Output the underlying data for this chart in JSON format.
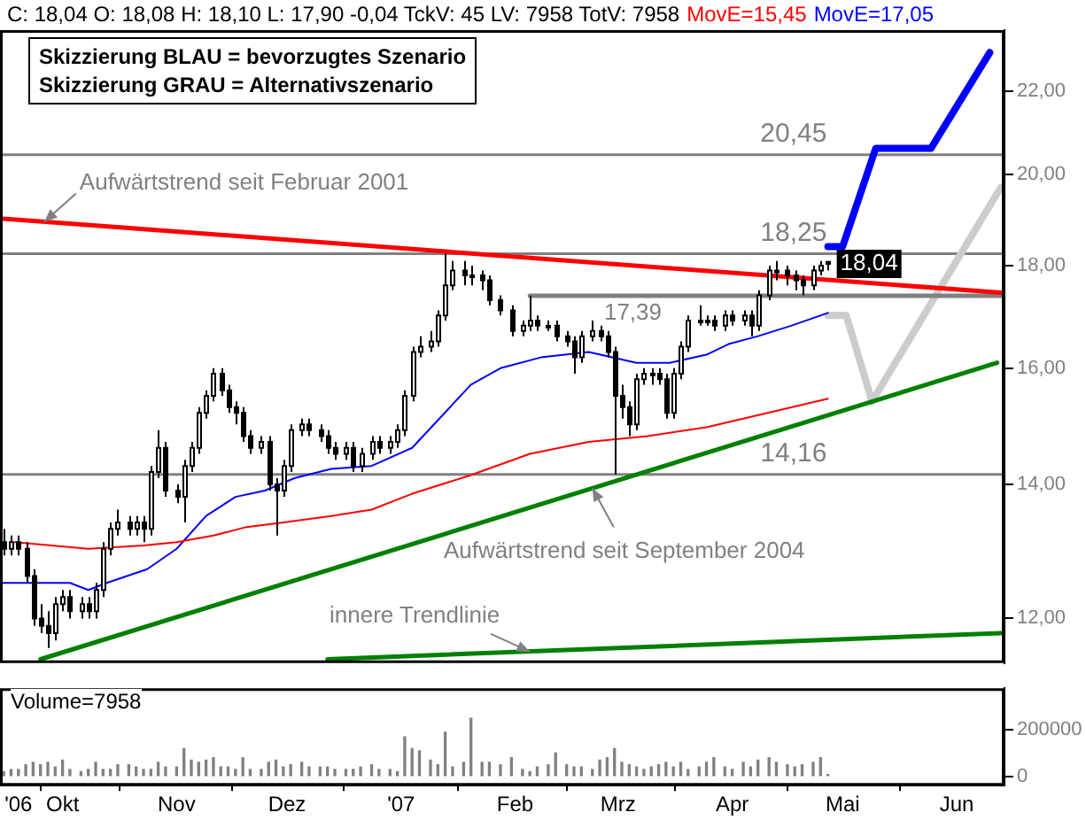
{
  "chart_data": [
    {
      "type": "candlestick",
      "title": "C: 18,04 O: 18,08 H: 18,10 L: 17,90 -0,04 TckV: 45 LV: 7958 TotV: 7958",
      "legend": "top",
      "log": true,
      "tick_labels": "y",
      "xlim": [
        "2006-09-14",
        "2007-06-14"
      ],
      "ylim": [
        11.4,
        23.6
      ],
      "yticks": [
        {
          "value": 12,
          "label": "12,00"
        },
        {
          "value": 14,
          "label": "14,00"
        },
        {
          "value": 16,
          "label": "16,00"
        },
        {
          "value": 18,
          "label": "18,00"
        },
        {
          "value": 20,
          "label": "20,00"
        },
        {
          "value": 22,
          "label": "22,00"
        }
      ],
      "x": [
        "2006-09-15",
        "2006-09-17",
        "2006-09-19",
        "2006-09-21",
        "2006-09-23",
        "2006-09-25",
        "2006-09-27",
        "2006-09-29",
        "2006-10-01",
        "2006-10-03",
        "2006-10-06",
        "2006-10-08",
        "2006-10-10",
        "2006-10-12",
        "2006-10-14",
        "2006-10-16",
        "2006-10-19",
        "2006-10-21",
        "2006-10-23",
        "2006-10-25",
        "2006-10-27",
        "2006-10-29",
        "2006-11-01",
        "2006-11-03",
        "2006-11-05",
        "2006-11-07",
        "2006-11-09",
        "2006-11-11",
        "2006-11-13",
        "2006-11-15",
        "2006-11-17",
        "2006-11-19",
        "2006-11-21",
        "2006-11-24",
        "2006-11-26",
        "2006-11-28",
        "2006-11-30",
        "2006-12-02",
        "2006-12-05",
        "2006-12-07",
        "2006-12-10",
        "2006-12-12",
        "2006-12-14",
        "2006-12-17",
        "2006-12-19",
        "2006-12-21",
        "2006-12-24",
        "2006-12-26",
        "2006-12-29",
        "2006-12-31",
        "2007-01-02",
        "2007-01-04",
        "2007-01-06",
        "2007-01-09",
        "2007-01-11",
        "2007-01-13",
        "2007-01-15",
        "2007-01-18",
        "2007-01-20",
        "2007-01-23",
        "2007-01-25",
        "2007-01-28",
        "2007-01-31",
        "2007-02-03",
        "2007-02-05",
        "2007-02-07",
        "2007-02-10",
        "2007-02-12",
        "2007-02-15",
        "2007-02-17",
        "2007-02-19",
        "2007-02-22",
        "2007-02-24",
        "2007-02-26",
        "2007-02-28",
        "2007-03-02",
        "2007-03-04",
        "2007-03-06",
        "2007-03-08",
        "2007-03-10",
        "2007-03-12",
        "2007-03-14",
        "2007-03-16",
        "2007-03-18",
        "2007-03-20",
        "2007-03-23",
        "2007-03-25",
        "2007-03-27",
        "2007-03-30",
        "2007-04-01",
        "2007-04-04",
        "2007-04-06",
        "2007-04-08",
        "2007-04-11",
        "2007-04-13",
        "2007-04-16",
        "2007-04-18",
        "2007-04-20",
        "2007-04-23",
        "2007-04-25",
        "2007-04-27"
      ],
      "ohlc": [
        [
          13.1,
          13.3,
          12.9,
          13.0
        ],
        [
          13.0,
          13.2,
          12.9,
          13.1
        ],
        [
          13.1,
          13.2,
          12.9,
          13.0
        ],
        [
          13.0,
          13.1,
          12.5,
          12.6
        ],
        [
          12.6,
          12.7,
          11.9,
          12.0
        ],
        [
          12.0,
          12.2,
          11.8,
          11.9
        ],
        [
          11.9,
          12.1,
          11.6,
          11.8
        ],
        [
          11.8,
          12.3,
          11.7,
          12.2
        ],
        [
          12.2,
          12.4,
          12.1,
          12.3
        ],
        [
          12.3,
          12.4,
          12.0,
          12.1
        ],
        [
          12.1,
          12.3,
          12.0,
          12.2
        ],
        [
          12.2,
          12.3,
          12.0,
          12.1
        ],
        [
          12.1,
          12.5,
          12.0,
          12.4
        ],
        [
          12.4,
          13.1,
          12.3,
          13.0
        ],
        [
          13.0,
          13.4,
          12.9,
          13.3
        ],
        [
          13.3,
          13.6,
          13.2,
          13.4
        ],
        [
          13.4,
          13.5,
          13.2,
          13.3
        ],
        [
          13.3,
          13.5,
          13.2,
          13.4
        ],
        [
          13.4,
          13.5,
          13.1,
          13.3
        ],
        [
          13.3,
          14.3,
          13.2,
          14.2
        ],
        [
          14.2,
          14.9,
          14.1,
          14.6
        ],
        [
          14.6,
          14.7,
          13.8,
          13.9
        ],
        [
          13.9,
          14.0,
          13.7,
          13.8
        ],
        [
          13.8,
          14.4,
          13.4,
          14.3
        ],
        [
          14.3,
          14.7,
          14.2,
          14.6
        ],
        [
          14.6,
          15.3,
          14.5,
          15.2
        ],
        [
          15.2,
          15.6,
          15.1,
          15.5
        ],
        [
          15.5,
          16.0,
          15.4,
          15.9
        ],
        [
          15.9,
          16.0,
          15.5,
          15.6
        ],
        [
          15.6,
          15.7,
          15.2,
          15.3
        ],
        [
          15.3,
          15.4,
          15.0,
          15.2
        ],
        [
          15.2,
          15.3,
          14.7,
          14.8
        ],
        [
          14.8,
          14.9,
          14.5,
          14.6
        ],
        [
          14.6,
          14.8,
          14.5,
          14.7
        ],
        [
          14.7,
          14.8,
          13.9,
          14.0
        ],
        [
          14.0,
          14.1,
          13.2,
          13.9
        ],
        [
          13.9,
          14.4,
          13.8,
          14.3
        ],
        [
          14.3,
          15.0,
          14.2,
          14.9
        ],
        [
          14.9,
          15.1,
          14.8,
          15.0
        ],
        [
          15.0,
          15.1,
          14.8,
          14.9
        ],
        [
          14.9,
          15.0,
          14.7,
          14.8
        ],
        [
          14.8,
          14.9,
          14.5,
          14.6
        ],
        [
          14.6,
          14.7,
          14.4,
          14.5
        ],
        [
          14.5,
          14.7,
          14.4,
          14.6
        ],
        [
          14.6,
          14.7,
          14.2,
          14.3
        ],
        [
          14.3,
          14.6,
          14.2,
          14.5
        ],
        [
          14.5,
          14.8,
          14.4,
          14.7
        ],
        [
          14.7,
          14.8,
          14.5,
          14.6
        ],
        [
          14.6,
          14.8,
          14.5,
          14.7
        ],
        [
          14.7,
          15.0,
          14.6,
          14.9
        ],
        [
          14.9,
          15.6,
          14.8,
          15.5
        ],
        [
          15.5,
          16.4,
          15.4,
          16.3
        ],
        [
          16.3,
          16.6,
          16.2,
          16.4
        ],
        [
          16.4,
          16.7,
          16.3,
          16.5
        ],
        [
          16.5,
          17.1,
          16.4,
          17.0
        ],
        [
          17.0,
          18.25,
          16.9,
          17.6
        ],
        [
          17.6,
          18.1,
          17.5,
          17.9
        ],
        [
          17.9,
          18.1,
          17.6,
          17.8
        ],
        [
          17.8,
          18.0,
          17.6,
          17.8
        ],
        [
          17.8,
          17.9,
          17.5,
          17.7
        ],
        [
          17.7,
          17.8,
          17.2,
          17.3
        ],
        [
          17.3,
          17.4,
          17.0,
          17.1
        ],
        [
          17.1,
          17.2,
          16.6,
          16.7
        ],
        [
          16.7,
          16.9,
          16.6,
          16.8
        ],
        [
          16.8,
          17.39,
          16.7,
          16.9
        ],
        [
          16.9,
          17.0,
          16.7,
          16.8
        ],
        [
          16.8,
          16.9,
          16.7,
          16.8
        ],
        [
          16.8,
          16.9,
          16.5,
          16.6
        ],
        [
          16.6,
          16.7,
          16.4,
          16.5
        ],
        [
          16.5,
          16.6,
          15.9,
          16.2
        ],
        [
          16.2,
          16.7,
          16.1,
          16.6
        ],
        [
          16.6,
          16.9,
          16.5,
          16.7
        ],
        [
          16.7,
          16.8,
          16.5,
          16.6
        ],
        [
          16.6,
          16.7,
          16.2,
          16.3
        ],
        [
          16.3,
          16.4,
          14.16,
          15.5
        ],
        [
          15.5,
          15.7,
          15.1,
          15.3
        ],
        [
          15.3,
          15.4,
          14.8,
          15.0
        ],
        [
          15.0,
          15.9,
          14.9,
          15.8
        ],
        [
          15.8,
          16.0,
          15.7,
          15.9
        ],
        [
          15.9,
          16.0,
          15.7,
          15.9
        ],
        [
          15.9,
          16.0,
          15.7,
          15.8
        ],
        [
          15.8,
          15.9,
          15.1,
          15.2
        ],
        [
          15.2,
          16.0,
          15.1,
          15.9
        ],
        [
          15.9,
          16.5,
          15.8,
          16.4
        ],
        [
          16.4,
          17.0,
          16.3,
          16.9
        ],
        [
          16.9,
          17.2,
          16.8,
          16.9
        ],
        [
          16.9,
          17.0,
          16.8,
          16.9
        ],
        [
          16.9,
          17.0,
          16.7,
          16.8
        ],
        [
          16.8,
          17.1,
          16.7,
          17.0
        ],
        [
          17.0,
          17.1,
          16.8,
          16.9
        ],
        [
          16.9,
          17.1,
          16.8,
          17.0
        ],
        [
          17.0,
          17.1,
          16.6,
          16.8
        ],
        [
          16.8,
          17.5,
          16.7,
          17.4
        ],
        [
          17.4,
          18.0,
          17.3,
          17.9
        ],
        [
          17.9,
          18.1,
          17.7,
          17.9
        ],
        [
          17.9,
          18.0,
          17.6,
          17.8
        ],
        [
          17.8,
          17.9,
          17.5,
          17.7
        ],
        [
          17.7,
          17.8,
          17.4,
          17.6
        ],
        [
          17.6,
          18.0,
          17.5,
          17.9
        ],
        [
          17.9,
          18.1,
          17.8,
          18.0
        ],
        [
          18.08,
          18.1,
          17.9,
          18.04
        ]
      ],
      "series": [
        {
          "type": "line",
          "name": "MovE=15,45",
          "color": "#ff0000",
          "x": [
            "2006-09-18",
            "2006-10-08",
            "2006-10-23",
            "2006-11-01",
            "2006-11-11",
            "2006-11-20",
            "2006-11-30",
            "2006-12-13",
            "2006-12-24",
            "2007-01-04",
            "2007-01-20",
            "2007-02-05",
            "2007-02-21",
            "2007-03-09",
            "2007-03-25",
            "2007-04-27"
          ],
          "values": [
            13.1,
            13.0,
            13.05,
            13.1,
            13.2,
            13.33,
            13.4,
            13.5,
            13.6,
            13.85,
            14.15,
            14.5,
            14.7,
            14.8,
            14.95,
            15.45
          ]
        },
        {
          "type": "line",
          "name": "MovE=17,05",
          "color": "#0000ff",
          "x": [
            "2006-09-14",
            "2006-10-03",
            "2006-10-08",
            "2006-10-13",
            "2006-10-24",
            "2006-11-01",
            "2006-11-09",
            "2006-11-17",
            "2006-11-25",
            "2006-12-03",
            "2006-12-13",
            "2006-12-24",
            "2007-01-04",
            "2007-01-20",
            "2007-01-28",
            "2007-02-08",
            "2007-02-21",
            "2007-03-06",
            "2007-03-15",
            "2007-03-25",
            "2007-03-31",
            "2007-04-08",
            "2007-04-17",
            "2007-04-27"
          ],
          "values": [
            12.5,
            12.5,
            12.4,
            12.5,
            12.7,
            13.0,
            13.5,
            13.8,
            13.9,
            14.1,
            14.25,
            14.3,
            14.6,
            15.7,
            16.0,
            16.2,
            16.3,
            16.1,
            16.1,
            16.25,
            16.45,
            16.6,
            16.8,
            17.05
          ]
        },
        {
          "type": "line",
          "color": "#ff0000",
          "x": [
            "2006-09-15",
            "2007-06-13"
          ],
          "values": [
            19.0,
            17.45
          ]
        },
        {
          "type": "line",
          "color": "#008000",
          "x": [
            "2006-09-25",
            "2007-06-12"
          ],
          "values": [
            11.45,
            16.1
          ]
        },
        {
          "type": "line",
          "color": "#008000",
          "x": [
            "2006-12-12",
            "2007-06-13"
          ],
          "values": [
            11.45,
            11.8
          ]
        },
        {
          "type": "line",
          "color": "#808080",
          "x": [
            "2007-02-05",
            "2007-06-13"
          ],
          "values": [
            17.39,
            17.39
          ]
        },
        {
          "type": "line",
          "color": "#0000ff",
          "x": [
            "2007-04-27",
            "2007-05-01",
            "2007-05-10",
            "2007-05-25",
            "2007-06-10"
          ],
          "values": [
            18.4,
            18.4,
            20.6,
            20.6,
            23.0
          ]
        },
        {
          "type": "line",
          "color": "#cccccc",
          "x": [
            "2007-04-27",
            "2007-05-02",
            "2007-05-09",
            "2007-06-13"
          ],
          "values": [
            17.0,
            17.0,
            15.4,
            19.7
          ]
        }
      ],
      "ref_lines": [
        {
          "axis": "y",
          "value": 20.45,
          "label": "20,45",
          "color": "#808080"
        },
        {
          "axis": "y",
          "value": 18.25,
          "label": "18,25",
          "color": "#808080"
        },
        {
          "axis": "y",
          "value": 14.16,
          "label": "14,16",
          "color": "#808080"
        }
      ],
      "annotations": [
        "Skizzierung BLAU = bevorzugtes Szenario",
        "Skizzierung GRAU = Alternativszenario",
        {
          "text": "Aufwärtstrend seit Februar 2001",
          "x": "2006-09-26",
          "y": 18.93
        },
        {
          "text": "Aufwärtstrend seit September 2004",
          "x": "2007-02-22",
          "y": 13.94
        },
        {
          "text": "innere Trendlinie",
          "x": "2007-02-05",
          "y": 11.55
        },
        {
          "text": "17,39",
          "x": "2007-03-05",
          "y": 17.39
        },
        {
          "text": "18,04",
          "x": "2007-04-27",
          "y": 18.04
        }
      ]
    },
    {
      "type": "bar",
      "title": "Volume=7958",
      "color": "#808080",
      "xlim": [
        "2006-09-14",
        "2007-06-14"
      ],
      "ylim": [
        -40000,
        380000
      ],
      "yticks": [
        0,
        200000
      ],
      "xticks": [
        {
          "value": "2006-09-19",
          "label": "'06"
        },
        {
          "value": "2006-10-01",
          "label": "Okt"
        },
        {
          "value": "2006-11-01",
          "label": "Nov"
        },
        {
          "value": "2006-12-01",
          "label": "Dez"
        },
        {
          "value": "2007-01-01",
          "label": "'07"
        },
        {
          "value": "2007-02-01",
          "label": "Feb"
        },
        {
          "value": "2007-03-01",
          "label": "Mrz"
        },
        {
          "value": "2007-04-01",
          "label": "Apr"
        },
        {
          "value": "2007-05-01",
          "label": "Mai"
        },
        {
          "value": "2007-06-01",
          "label": "Jun"
        }
      ],
      "x": [
        "2006-09-15",
        "2006-09-17",
        "2006-09-19",
        "2006-09-21",
        "2006-09-23",
        "2006-09-25",
        "2006-09-27",
        "2006-09-29",
        "2006-10-01",
        "2006-10-03",
        "2006-10-06",
        "2006-10-08",
        "2006-10-10",
        "2006-10-12",
        "2006-10-14",
        "2006-10-16",
        "2006-10-19",
        "2006-10-21",
        "2006-10-23",
        "2006-10-25",
        "2006-10-27",
        "2006-10-29",
        "2006-11-01",
        "2006-11-03",
        "2006-11-05",
        "2006-11-07",
        "2006-11-09",
        "2006-11-11",
        "2006-11-13",
        "2006-11-15",
        "2006-11-17",
        "2006-11-19",
        "2006-11-21",
        "2006-11-24",
        "2006-11-26",
        "2006-11-28",
        "2006-11-30",
        "2006-12-02",
        "2006-12-05",
        "2006-12-07",
        "2006-12-10",
        "2006-12-12",
        "2006-12-14",
        "2006-12-17",
        "2006-12-19",
        "2006-12-21",
        "2006-12-24",
        "2006-12-26",
        "2006-12-29",
        "2006-12-31",
        "2007-01-02",
        "2007-01-04",
        "2007-01-06",
        "2007-01-09",
        "2007-01-11",
        "2007-01-13",
        "2007-01-15",
        "2007-01-18",
        "2007-01-20",
        "2007-01-23",
        "2007-01-25",
        "2007-01-28",
        "2007-01-31",
        "2007-02-03",
        "2007-02-05",
        "2007-02-07",
        "2007-02-10",
        "2007-02-12",
        "2007-02-15",
        "2007-02-17",
        "2007-02-19",
        "2007-02-22",
        "2007-02-24",
        "2007-02-26",
        "2007-02-28",
        "2007-03-02",
        "2007-03-04",
        "2007-03-06",
        "2007-03-08",
        "2007-03-10",
        "2007-03-12",
        "2007-03-14",
        "2007-03-16",
        "2007-03-18",
        "2007-03-20",
        "2007-03-23",
        "2007-03-25",
        "2007-03-27",
        "2007-03-30",
        "2007-04-01",
        "2007-04-04",
        "2007-04-06",
        "2007-04-08",
        "2007-04-11",
        "2007-04-13",
        "2007-04-16",
        "2007-04-18",
        "2007-04-20",
        "2007-04-23",
        "2007-04-25",
        "2007-04-27"
      ],
      "values": [
        20000,
        30000,
        30000,
        50000,
        60000,
        50000,
        60000,
        40000,
        70000,
        30000,
        20000,
        30000,
        60000,
        30000,
        30000,
        50000,
        50000,
        40000,
        30000,
        30000,
        60000,
        40000,
        40000,
        120000,
        70000,
        60000,
        70000,
        80000,
        40000,
        40000,
        30000,
        80000,
        30000,
        30000,
        60000,
        70000,
        40000,
        50000,
        60000,
        40000,
        40000,
        40000,
        30000,
        30000,
        30000,
        40000,
        50000,
        30000,
        30000,
        20000,
        170000,
        120000,
        110000,
        70000,
        50000,
        190000,
        40000,
        60000,
        250000,
        60000,
        60000,
        50000,
        80000,
        30000,
        20000,
        40000,
        50000,
        100000,
        50000,
        40000,
        40000,
        30000,
        70000,
        80000,
        120000,
        60000,
        50000,
        40000,
        30000,
        40000,
        50000,
        60000,
        40000,
        60000,
        30000,
        40000,
        60000,
        80000,
        40000,
        30000,
        60000,
        40000,
        70000,
        80000,
        60000,
        50000,
        40000,
        50000,
        60000,
        80000,
        7958
      ]
    }
  ]
}
